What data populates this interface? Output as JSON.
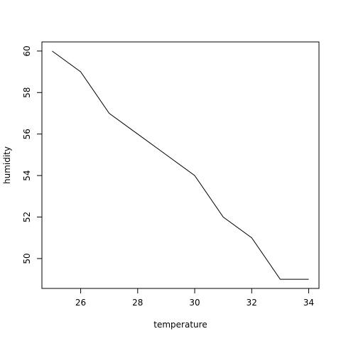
{
  "chart_data": {
    "type": "line",
    "title": "",
    "xlabel": "temperature",
    "ylabel": "humidity",
    "x": [
      25,
      26,
      27,
      28,
      29,
      30,
      31,
      32,
      33,
      34
    ],
    "series": [
      {
        "values": [
          60,
          59,
          57,
          56,
          55,
          54,
          52,
          51,
          49,
          49
        ]
      }
    ],
    "xlim": [
      24.64,
      34.36
    ],
    "ylim": [
      48.56,
      60.44
    ],
    "x_ticks": [
      26,
      28,
      30,
      32,
      34
    ],
    "y_ticks": [
      50,
      52,
      54,
      56,
      58,
      60
    ],
    "grid": false,
    "line_color": "#000000"
  }
}
